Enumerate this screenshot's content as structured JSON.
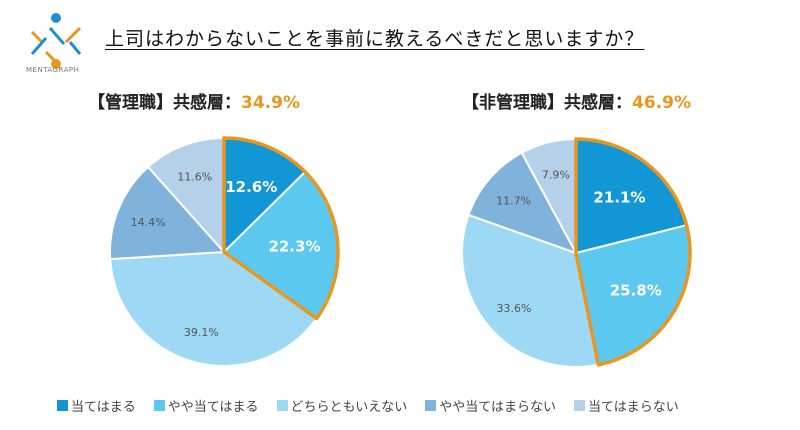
{
  "brand": {
    "name": "MENTAGRAPH"
  },
  "title": "上司はわからないことを事前に教えるべきだと思いますか？",
  "colors": {
    "categories": [
      "#1297d6",
      "#5bc8f0",
      "#9dd9f5",
      "#7fb3dc",
      "#b5d1ea"
    ],
    "highlight": "#e8961e"
  },
  "chart_data": [
    {
      "type": "pie",
      "title_prefix": "【管理職】共感層：",
      "title_value": "34.9%",
      "categories": [
        "当てはまる",
        "やや当てはまる",
        "どちらともいえない",
        "やや当てはまらない",
        "当てはまらない"
      ],
      "values": [
        12.6,
        22.3,
        39.1,
        14.4,
        11.6
      ],
      "labels": [
        "12.6%",
        "22.3%",
        "39.1%",
        "14.4%",
        "11.6%"
      ],
      "highlighted": [
        0,
        1
      ]
    },
    {
      "type": "pie",
      "title_prefix": "【非管理職】共感層：",
      "title_value": "46.9%",
      "categories": [
        "当てはまる",
        "やや当てはまる",
        "どちらともいえない",
        "やや当てはまらない",
        "当てはまらない"
      ],
      "values": [
        21.1,
        25.8,
        33.6,
        11.7,
        7.9
      ],
      "labels": [
        "21.1%",
        "25.8%",
        "33.6%",
        "11.7%",
        "7.9%"
      ],
      "highlighted": [
        0,
        1
      ]
    }
  ],
  "legend": [
    "当てはまる",
    "やや当てはまる",
    "どちらともいえない",
    "やや当てはまらない",
    "当てはまらない"
  ]
}
